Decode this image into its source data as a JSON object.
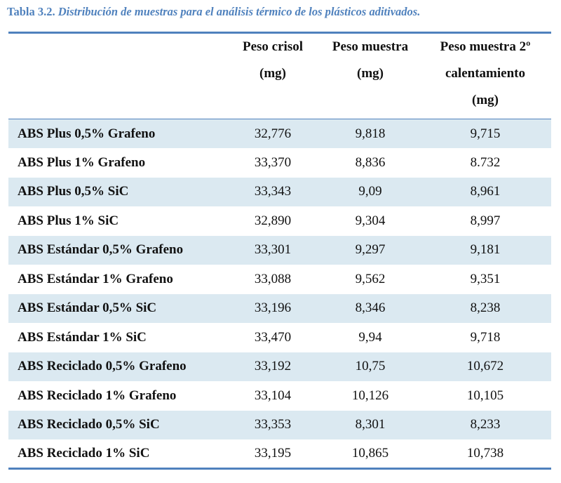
{
  "caption": {
    "label": "Tabla 3.2.",
    "text": "Distribución de muestras para el análisis térmico de los plásticos aditivados."
  },
  "colors": {
    "accent": "#4f81bd",
    "row_shade": "#dbe9f1"
  },
  "table": {
    "headers": [
      [],
      [
        "Peso crisol",
        "(mg)"
      ],
      [
        "Peso muestra",
        "(mg)"
      ],
      [
        "Peso muestra 2º",
        "calentamiento",
        "(mg)"
      ]
    ],
    "rows": [
      {
        "name": "ABS Plus 0,5% Grafeno",
        "crisol": "32,776",
        "muestra": "9,818",
        "muestra2": "9,715"
      },
      {
        "name": "ABS Plus 1% Grafeno",
        "crisol": "33,370",
        "muestra": "8,836",
        "muestra2": "8.732"
      },
      {
        "name": "ABS Plus 0,5% SiC",
        "crisol": "33,343",
        "muestra": "9,09",
        "muestra2": "8,961"
      },
      {
        "name": "ABS Plus 1% SiC",
        "crisol": "32,890",
        "muestra": "9,304",
        "muestra2": "8,997"
      },
      {
        "name": "ABS Estándar 0,5% Grafeno",
        "crisol": "33,301",
        "muestra": "9,297",
        "muestra2": "9,181"
      },
      {
        "name": "ABS Estándar 1% Grafeno",
        "crisol": "33,088",
        "muestra": "9,562",
        "muestra2": "9,351"
      },
      {
        "name": "ABS Estándar 0,5% SiC",
        "crisol": "33,196",
        "muestra": "8,346",
        "muestra2": "8,238"
      },
      {
        "name": "ABS Estándar 1% SiC",
        "crisol": "33,470",
        "muestra": "9,94",
        "muestra2": "9,718"
      },
      {
        "name": "ABS Reciclado 0,5% Grafeno",
        "crisol": "33,192",
        "muestra": "10,75",
        "muestra2": "10,672"
      },
      {
        "name": "ABS Reciclado 1% Grafeno",
        "crisol": "33,104",
        "muestra": "10,126",
        "muestra2": "10,105"
      },
      {
        "name": "ABS Reciclado 0,5% SiC",
        "crisol": "33,353",
        "muestra": "8,301",
        "muestra2": "8,233"
      },
      {
        "name": "ABS Reciclado 1% SiC",
        "crisol": "33,195",
        "muestra": "10,865",
        "muestra2": "10,738"
      }
    ]
  }
}
